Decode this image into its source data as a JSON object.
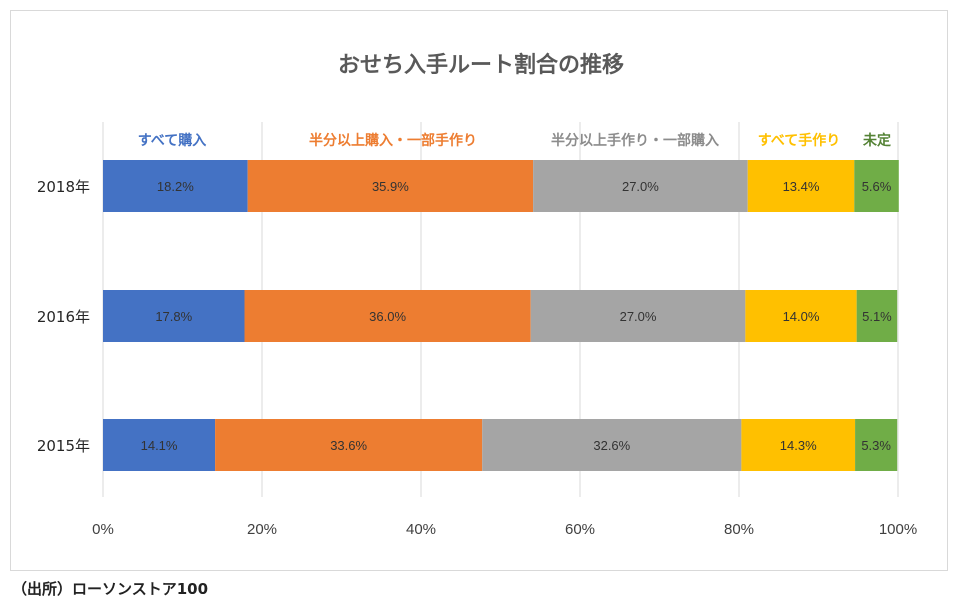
{
  "chart_data": {
    "type": "bar",
    "orientation": "horizontal",
    "stacked": true,
    "title": "おせち入手ルート割合の推移",
    "categories": [
      "2018年",
      "2016年",
      "2015年"
    ],
    "series": [
      {
        "name": "すべて購入",
        "color": "#4472C4",
        "values": [
          18.2,
          17.8,
          14.1
        ]
      },
      {
        "name": "半分以上購入・一部手作り",
        "color": "#ED7D31",
        "values": [
          35.9,
          36.0,
          33.6
        ]
      },
      {
        "name": "半分以上手作り・一部購入",
        "color": "#A5A5A5",
        "values": [
          27.0,
          27.0,
          32.6
        ]
      },
      {
        "name": "すべて手作り",
        "color": "#FFC000",
        "values": [
          13.4,
          14.0,
          14.3
        ]
      },
      {
        "name": "未定",
        "color": "#70AD47",
        "values": [
          5.6,
          5.1,
          5.3
        ]
      }
    ],
    "data_labels": [
      [
        "18.2%",
        "35.9%",
        "27.0%",
        "13.4%",
        "5.6%"
      ],
      [
        "17.8%",
        "36.0%",
        "27.0%",
        "14.0%",
        "5.1%"
      ],
      [
        "14.1%",
        "33.6%",
        "32.6%",
        "14.3%",
        "5.3%"
      ]
    ],
    "xlim": [
      0,
      100
    ],
    "x_ticks": [
      0,
      20,
      40,
      60,
      80,
      100
    ],
    "x_tick_labels": [
      "0%",
      "20%",
      "40%",
      "60%",
      "80%",
      "100%"
    ],
    "grid": true,
    "legend_position": "top"
  },
  "source": "（出所）ローソンストア100"
}
